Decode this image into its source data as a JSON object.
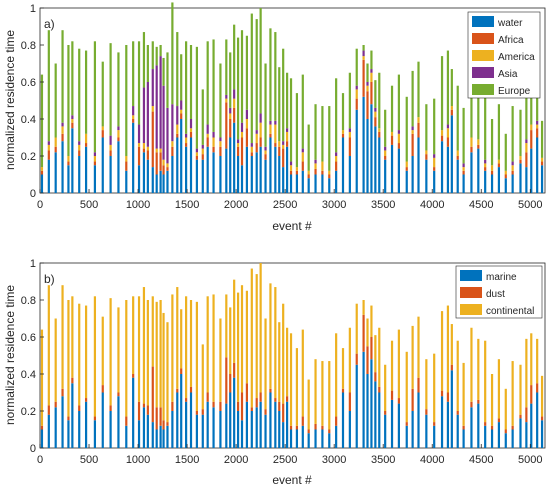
{
  "figure": {
    "background": "#ffffff"
  },
  "chart_data": [
    {
      "type": "bar",
      "panel_label": "a)",
      "xlabel": "event #",
      "ylabel": "normalized residence time",
      "xlim": [
        0,
        5150
      ],
      "ylim": [
        0,
        1
      ],
      "xticks": [
        0,
        500,
        1000,
        1500,
        2000,
        2500,
        3000,
        3500,
        4000,
        4500,
        5000
      ],
      "yticks": [
        0,
        0.2,
        0.4,
        0.6,
        0.8,
        1
      ],
      "grid": false,
      "legend_position": "top-right",
      "stacking": "stacked",
      "x": [
        20,
        90,
        160,
        230,
        290,
        330,
        400,
        470,
        560,
        640,
        720,
        800,
        880,
        950,
        1010,
        1060,
        1100,
        1150,
        1190,
        1230,
        1260,
        1300,
        1350,
        1400,
        1440,
        1490,
        1540,
        1600,
        1660,
        1710,
        1770,
        1840,
        1900,
        1940,
        1980,
        2020,
        2060,
        2110,
        2160,
        2210,
        2250,
        2300,
        2350,
        2400,
        2440,
        2480,
        2520,
        2560,
        2620,
        2680,
        2740,
        2810,
        2880,
        2950,
        3020,
        3090,
        3160,
        3230,
        3300,
        3340,
        3380,
        3420,
        3460,
        3520,
        3590,
        3660,
        3740,
        3800,
        3860,
        3940,
        4020,
        4100,
        4160,
        4200,
        4260,
        4320,
        4400,
        4470,
        4540,
        4610,
        4680,
        4750,
        4820,
        4900,
        4960,
        5010,
        5070,
        5120
      ],
      "series": [
        {
          "name": "water",
          "color": "#0072BD",
          "values": [
            0.1,
            0.18,
            0.22,
            0.28,
            0.15,
            0.35,
            0.2,
            0.25,
            0.15,
            0.3,
            0.2,
            0.28,
            0.12,
            0.38,
            0.15,
            0.22,
            0.18,
            0.14,
            0.1,
            0.12,
            0.1,
            0.12,
            0.2,
            0.3,
            0.4,
            0.25,
            0.3,
            0.18,
            0.18,
            0.25,
            0.22,
            0.2,
            0.24,
            0.3,
            0.38,
            0.2,
            0.15,
            0.25,
            0.2,
            0.22,
            0.25,
            0.18,
            0.3,
            0.25,
            0.2,
            0.14,
            0.25,
            0.1,
            0.1,
            0.12,
            0.08,
            0.1,
            0.1,
            0.08,
            0.12,
            0.3,
            0.2,
            0.45,
            0.52,
            0.4,
            0.48,
            0.36,
            0.3,
            0.18,
            0.26,
            0.24,
            0.12,
            0.2,
            0.3,
            0.18,
            0.12,
            0.28,
            0.25,
            0.42,
            0.18,
            0.1,
            0.22,
            0.24,
            0.12,
            0.1,
            0.14,
            0.08,
            0.1,
            0.16,
            0.14,
            0.24,
            0.3,
            0.15
          ]
        },
        {
          "name": "Africa",
          "color": "#D95319",
          "values": [
            0.02,
            0.05,
            0.03,
            0.04,
            0.02,
            0.03,
            0.03,
            0.02,
            0.02,
            0.04,
            0.03,
            0.02,
            0.05,
            0.02,
            0.1,
            0.02,
            0.05,
            0.3,
            0.12,
            0.1,
            0.05,
            0.02,
            0.05,
            0.02,
            0.03,
            0.02,
            0.03,
            0.02,
            0.03,
            0.05,
            0.03,
            0.05,
            0.25,
            0.1,
            0.08,
            0.05,
            0.15,
            0.1,
            0.02,
            0.05,
            0.05,
            0.03,
            0.02,
            0.02,
            0.05,
            0.1,
            0.03,
            0.02,
            0.02,
            0.05,
            0.02,
            0.03,
            0.02,
            0.02,
            0.05,
            0.02,
            0.1,
            0.06,
            0.2,
            0.15,
            0.12,
            0.05,
            0.03,
            0.02,
            0.05,
            0.03,
            0.02,
            0.12,
            0.08,
            0.03,
            0.02,
            0.03,
            0.05,
            0.03,
            0.02,
            0.02,
            0.03,
            0.02,
            0.02,
            0.02,
            0.02,
            0.02,
            0.02,
            0.02,
            0.08,
            0.1,
            0.05,
            0.02
          ]
        },
        {
          "name": "America",
          "color": "#EDB120",
          "values": [
            0.02,
            0.03,
            0.05,
            0.04,
            0.03,
            0.02,
            0.03,
            0.05,
            0.03,
            0.02,
            0.03,
            0.04,
            0.03,
            0.02,
            0.02,
            0.03,
            0.02,
            0.03,
            0.02,
            0.02,
            0.03,
            0.02,
            0.03,
            0.05,
            0.02,
            0.03,
            0.02,
            0.02,
            0.03,
            0.02,
            0.05,
            0.03,
            0.02,
            0.03,
            0.05,
            0.02,
            0.03,
            0.05,
            0.03,
            0.05,
            0.08,
            0.02,
            0.05,
            0.1,
            0.03,
            0.02,
            0.05,
            0.03,
            0.02,
            0.05,
            0.02,
            0.03,
            0.05,
            0.02,
            0.03,
            0.02,
            0.03,
            0.05,
            0.02,
            0.03,
            0.05,
            0.03,
            0.02,
            0.03,
            0.02,
            0.05,
            0.03,
            0.02,
            0.03,
            0.02,
            0.05,
            0.03,
            0.05,
            0.02,
            0.03,
            0.02,
            0.05,
            0.03,
            0.02,
            0.03,
            0.02,
            0.02,
            0.03,
            0.02,
            0.05,
            0.03,
            0.02,
            0.02
          ]
        },
        {
          "name": "Asia",
          "color": "#7E2F8E",
          "values": [
            0.0,
            0.02,
            0.0,
            0.02,
            0.0,
            0.02,
            0.02,
            0.0,
            0.02,
            0.0,
            0.05,
            0.02,
            0.0,
            0.05,
            0.1,
            0.3,
            0.35,
            0.2,
            0.45,
            0.5,
            0.4,
            0.3,
            0.2,
            0.1,
            0.05,
            0.02,
            0.05,
            0.02,
            0.02,
            0.05,
            0.03,
            0.02,
            0.02,
            0.03,
            0.05,
            0.02,
            0.05,
            0.05,
            0.02,
            0.02,
            0.05,
            0.02,
            0.02,
            0.02,
            0.0,
            0.02,
            0.02,
            0.02,
            0.0,
            0.02,
            0.0,
            0.02,
            0.0,
            0.0,
            0.02,
            0.0,
            0.02,
            0.02,
            0.03,
            0.02,
            0.02,
            0.02,
            0.0,
            0.02,
            0.0,
            0.02,
            0.0,
            0.02,
            0.0,
            0.0,
            0.02,
            0.0,
            0.02,
            0.0,
            0.0,
            0.02,
            0.0,
            0.0,
            0.02,
            0.0,
            0.0,
            0.0,
            0.02,
            0.0,
            0.02,
            0.0,
            0.02,
            0.0
          ]
        },
        {
          "name": "Europe",
          "color": "#77AC30",
          "values": [
            0.5,
            0.6,
            0.4,
            0.5,
            0.6,
            0.4,
            0.5,
            0.45,
            0.6,
            0.35,
            0.5,
            0.4,
            0.6,
            0.35,
            0.45,
            0.3,
            0.2,
            0.15,
            0.1,
            0.06,
            0.15,
            0.3,
            0.55,
            0.4,
            0.25,
            0.5,
            0.4,
            0.55,
            0.3,
            0.45,
            0.5,
            0.4,
            0.3,
            0.3,
            0.35,
            0.55,
            0.5,
            0.4,
            0.7,
            0.6,
            0.57,
            0.45,
            0.5,
            0.48,
            0.4,
            0.5,
            0.3,
            0.45,
            0.4,
            0.4,
            0.25,
            0.3,
            0.3,
            0.35,
            0.4,
            0.2,
            0.3,
            0.2,
            0.03,
            0.1,
            0.1,
            0.15,
            0.3,
            0.2,
            0.25,
            0.3,
            0.35,
            0.3,
            0.3,
            0.25,
            0.3,
            0.4,
            0.4,
            0.2,
            0.35,
            0.3,
            0.35,
            0.3,
            0.4,
            0.25,
            0.3,
            0.2,
            0.3,
            0.25,
            0.3,
            0.25,
            0.2,
            0.2
          ]
        }
      ]
    },
    {
      "type": "bar",
      "panel_label": "b)",
      "xlabel": "event #",
      "ylabel": "normalized residence time",
      "xlim": [
        0,
        5150
      ],
      "ylim": [
        0,
        1
      ],
      "xticks": [
        0,
        500,
        1000,
        1500,
        2000,
        2500,
        3000,
        3500,
        4000,
        4500,
        5000
      ],
      "yticks": [
        0,
        0.2,
        0.4,
        0.6,
        0.8,
        1
      ],
      "grid": false,
      "legend_position": "top-right",
      "stacking": "stacked",
      "x": [
        20,
        90,
        160,
        230,
        290,
        330,
        400,
        470,
        560,
        640,
        720,
        800,
        880,
        950,
        1010,
        1060,
        1100,
        1150,
        1190,
        1230,
        1260,
        1300,
        1350,
        1400,
        1440,
        1490,
        1540,
        1600,
        1660,
        1710,
        1770,
        1840,
        1900,
        1940,
        1980,
        2020,
        2060,
        2110,
        2160,
        2210,
        2250,
        2300,
        2350,
        2400,
        2440,
        2480,
        2520,
        2560,
        2620,
        2680,
        2740,
        2810,
        2880,
        2950,
        3020,
        3090,
        3160,
        3230,
        3300,
        3340,
        3380,
        3420,
        3460,
        3520,
        3590,
        3660,
        3740,
        3800,
        3860,
        3940,
        4020,
        4100,
        4160,
        4200,
        4260,
        4320,
        4400,
        4470,
        4540,
        4610,
        4680,
        4750,
        4820,
        4900,
        4960,
        5010,
        5070,
        5120
      ],
      "series": [
        {
          "name": "marine",
          "color": "#0072BD",
          "values": [
            0.1,
            0.18,
            0.22,
            0.28,
            0.15,
            0.35,
            0.2,
            0.25,
            0.15,
            0.3,
            0.2,
            0.28,
            0.12,
            0.38,
            0.15,
            0.22,
            0.18,
            0.14,
            0.1,
            0.12,
            0.1,
            0.12,
            0.2,
            0.3,
            0.4,
            0.25,
            0.3,
            0.18,
            0.18,
            0.25,
            0.22,
            0.2,
            0.24,
            0.3,
            0.38,
            0.2,
            0.15,
            0.25,
            0.2,
            0.22,
            0.25,
            0.18,
            0.3,
            0.25,
            0.2,
            0.14,
            0.25,
            0.1,
            0.1,
            0.12,
            0.08,
            0.1,
            0.1,
            0.08,
            0.12,
            0.3,
            0.2,
            0.45,
            0.52,
            0.4,
            0.48,
            0.36,
            0.3,
            0.18,
            0.26,
            0.24,
            0.12,
            0.2,
            0.3,
            0.18,
            0.12,
            0.28,
            0.25,
            0.42,
            0.18,
            0.1,
            0.22,
            0.24,
            0.12,
            0.1,
            0.14,
            0.08,
            0.1,
            0.16,
            0.14,
            0.24,
            0.3,
            0.15
          ]
        },
        {
          "name": "dust",
          "color": "#D95319",
          "values": [
            0.02,
            0.05,
            0.03,
            0.04,
            0.02,
            0.03,
            0.03,
            0.02,
            0.02,
            0.04,
            0.03,
            0.02,
            0.05,
            0.02,
            0.1,
            0.02,
            0.05,
            0.3,
            0.12,
            0.1,
            0.05,
            0.02,
            0.05,
            0.02,
            0.03,
            0.02,
            0.03,
            0.02,
            0.03,
            0.05,
            0.03,
            0.05,
            0.25,
            0.1,
            0.08,
            0.05,
            0.15,
            0.1,
            0.02,
            0.05,
            0.05,
            0.03,
            0.02,
            0.02,
            0.05,
            0.1,
            0.03,
            0.02,
            0.02,
            0.05,
            0.02,
            0.03,
            0.02,
            0.02,
            0.05,
            0.02,
            0.1,
            0.06,
            0.2,
            0.15,
            0.12,
            0.05,
            0.03,
            0.02,
            0.05,
            0.03,
            0.02,
            0.12,
            0.08,
            0.03,
            0.02,
            0.03,
            0.05,
            0.03,
            0.02,
            0.02,
            0.03,
            0.02,
            0.02,
            0.02,
            0.02,
            0.02,
            0.02,
            0.02,
            0.08,
            0.1,
            0.05,
            0.02
          ]
        },
        {
          "name": "continental",
          "color": "#EDB120",
          "values": [
            0.52,
            0.65,
            0.45,
            0.56,
            0.63,
            0.44,
            0.55,
            0.5,
            0.65,
            0.37,
            0.58,
            0.46,
            0.63,
            0.42,
            0.57,
            0.63,
            0.57,
            0.38,
            0.57,
            0.58,
            0.58,
            0.54,
            0.58,
            0.55,
            0.32,
            0.55,
            0.47,
            0.59,
            0.35,
            0.52,
            0.58,
            0.45,
            0.34,
            0.36,
            0.45,
            0.59,
            0.58,
            0.5,
            0.75,
            0.67,
            0.7,
            0.49,
            0.57,
            0.6,
            0.43,
            0.54,
            0.37,
            0.5,
            0.42,
            0.47,
            0.27,
            0.35,
            0.35,
            0.37,
            0.45,
            0.22,
            0.35,
            0.27,
            0.08,
            0.15,
            0.17,
            0.2,
            0.32,
            0.25,
            0.27,
            0.37,
            0.38,
            0.34,
            0.33,
            0.27,
            0.37,
            0.43,
            0.47,
            0.22,
            0.38,
            0.34,
            0.4,
            0.33,
            0.44,
            0.28,
            0.32,
            0.22,
            0.35,
            0.27,
            0.37,
            0.28,
            0.24,
            0.22
          ]
        }
      ]
    }
  ]
}
